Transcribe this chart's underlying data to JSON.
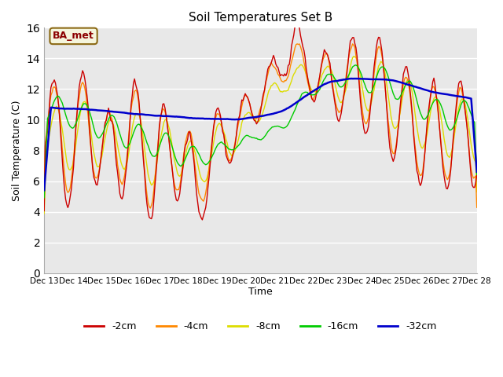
{
  "title": "Soil Temperatures Set B",
  "xlabel": "Time",
  "ylabel": "Soil Temperature (C)",
  "annotation": "BA_met",
  "ylim": [
    0,
    16
  ],
  "yticks": [
    0,
    2,
    4,
    6,
    8,
    10,
    12,
    14,
    16
  ],
  "colors": {
    "-2cm": "#cc0000",
    "-4cm": "#ff8800",
    "-8cm": "#dddd00",
    "-16cm": "#00cc00",
    "-32cm": "#0000cc"
  },
  "x_labels": [
    "Dec 13",
    "Dec 14",
    "Dec 15",
    "Dec 16",
    "Dec 17",
    "Dec 18",
    "Dec 19",
    "Dec 20",
    "Dec 21",
    "Dec 22",
    "Dec 23",
    "Dec 24",
    "Dec 25",
    "Dec 26",
    "Dec 27",
    "Dec 28"
  ],
  "n_days": 16,
  "pts_per_day": 24
}
